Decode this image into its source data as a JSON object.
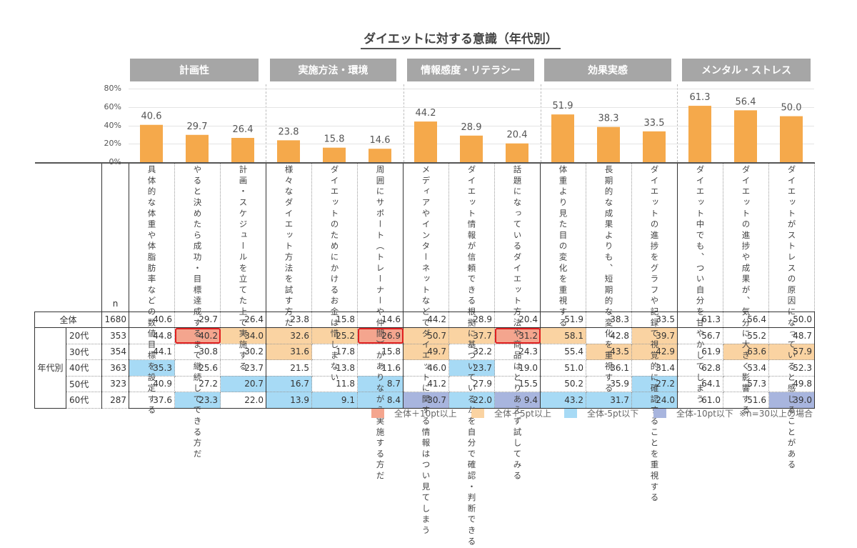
{
  "chart_data": {
    "type": "bar",
    "title": "ダイエットに対する意識（年代別）",
    "ylim": [
      0,
      80
    ],
    "yticks": [
      "0%",
      "20%",
      "40%",
      "60%",
      "80%"
    ],
    "groups": [
      {
        "label": "計画性",
        "span": 3
      },
      {
        "label": "実施方法・環境",
        "span": 3
      },
      {
        "label": "情報感度・リテラシー",
        "span": 3
      },
      {
        "label": "効果実感",
        "span": 3
      },
      {
        "label": "メンタル・ストレス",
        "span": 3
      }
    ],
    "categories": [
      "具体的な体重や体脂肪率などの数値目標を設定する",
      "やると決めたら成功・目標達成するまで継続してできる方だ",
      "計画・スケジュールを立てた上で実施する",
      "様々なダイエット方法を試す方だ",
      "ダイエットのためにかけるお金は惜しまない",
      "周囲にサポート（トレーナーや仲間）がありながら実施する方だ",
      "メディアやインターネットなどでダイエットに関する情報はつい見てしまう",
      "ダイエット情報が信頼できる根拠に基づいているかを自分で確認・判断できる",
      "話題になっているダイエット方法や商品はとりあえず試してみる",
      "体重より見た目の変化を重視する",
      "長期的な成果よりも、短期的な変化を重視する",
      "ダイエットの進捗をグラフや記録で視覚的に確認することを重視する",
      "ダイエット中でも、つい自分を甘やかしてしまう",
      "ダイエットの進捗や成果が、気分に大きく影響する",
      "ダイエットがストレスの原因になっていると感じることがある"
    ],
    "values": [
      40.6,
      29.7,
      26.4,
      23.8,
      15.8,
      14.6,
      44.2,
      28.9,
      20.4,
      51.9,
      38.3,
      33.5,
      61.3,
      56.4,
      50.0
    ],
    "bar_color": "#F5A94B",
    "table": {
      "n_header": "n",
      "group_label": "年代別",
      "rows": [
        {
          "label": "全体",
          "n": "1680",
          "values": [
            "40.6",
            "29.7",
            "26.4",
            "23.8",
            "15.8",
            "14.6",
            "44.2",
            "28.9",
            "20.4",
            "51.9",
            "38.3",
            "33.5",
            "61.3",
            "56.4",
            "50.0"
          ]
        },
        {
          "label": "20代",
          "n": "353",
          "values": [
            "44.8",
            "40.2",
            "34.0",
            "32.6",
            "25.2",
            "26.9",
            "50.7",
            "37.7",
            "31.2",
            "58.1",
            "42.8",
            "39.7",
            "56.7",
            "55.2",
            "48.7"
          ]
        },
        {
          "label": "30代",
          "n": "354",
          "values": [
            "44.1",
            "30.8",
            "30.2",
            "31.6",
            "17.8",
            "15.8",
            "49.7",
            "32.2",
            "24.3",
            "55.4",
            "43.5",
            "42.9",
            "61.9",
            "63.6",
            "57.9"
          ]
        },
        {
          "label": "40代",
          "n": "363",
          "values": [
            "35.3",
            "25.6",
            "23.7",
            "21.5",
            "13.8",
            "11.6",
            "46.0",
            "23.7",
            "19.0",
            "51.0",
            "36.1",
            "31.4",
            "62.8",
            "53.4",
            "52.3"
          ]
        },
        {
          "label": "50代",
          "n": "323",
          "values": [
            "40.9",
            "27.2",
            "20.7",
            "16.7",
            "11.8",
            "8.7",
            "41.2",
            "27.9",
            "15.5",
            "50.2",
            "35.9",
            "27.2",
            "64.1",
            "57.3",
            "49.8"
          ]
        },
        {
          "label": "60代",
          "n": "287",
          "values": [
            "37.6",
            "23.3",
            "22.0",
            "13.9",
            "9.1",
            "8.4",
            "30.7",
            "22.0",
            "9.4",
            "43.2",
            "31.7",
            "24.0",
            "61.0",
            "51.6",
            "39.0"
          ]
        }
      ]
    },
    "legend": [
      {
        "label": "全体＋10pt以上",
        "color": "#F4A58E"
      },
      {
        "label": "全体＋5pt以上",
        "color": "#FAD3A2"
      },
      {
        "label": "全体-5pt以下",
        "color": "#A7DAF5"
      },
      {
        "label": "全体-10pt以下",
        "color": "#A8B5DE"
      }
    ],
    "note": "※n=30以上の場合"
  }
}
